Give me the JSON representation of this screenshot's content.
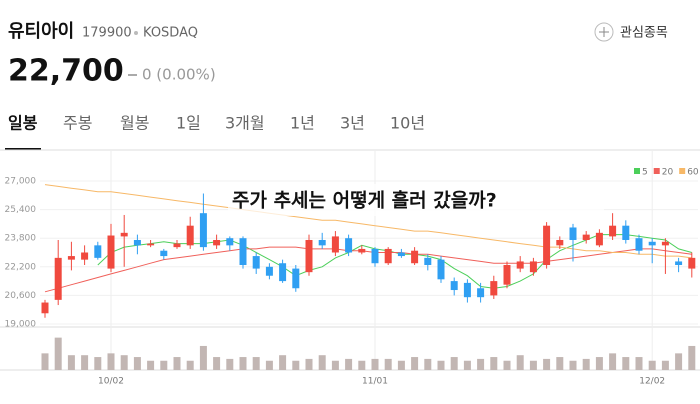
{
  "header": {
    "title": "유티아이",
    "code": "179900",
    "market": "KOSDAQ",
    "price": "22,700",
    "change": "0 (0.00%)",
    "watch_button": "관심종목"
  },
  "tabs": {
    "items": [
      "일봉",
      "주봉",
      "월봉",
      "1일",
      "3개월",
      "1년",
      "3년",
      "10년"
    ],
    "selected": 0
  },
  "chart_data": {
    "type": "candlestick",
    "annotation": "주가 추세는 어떻게 흘러 갔을까?",
    "categories": [
      null,
      null,
      null,
      null,
      null,
      "10/02",
      null,
      null,
      null,
      null,
      null,
      null,
      null,
      null,
      null,
      null,
      null,
      null,
      null,
      null,
      null,
      null,
      null,
      null,
      null,
      "11/01",
      null,
      null,
      null,
      null,
      null,
      null,
      null,
      null,
      null,
      null,
      null,
      null,
      null,
      null,
      null,
      null,
      null,
      null,
      null,
      null,
      "12/02",
      null,
      null,
      null
    ],
    "open": [
      19600,
      20350,
      22600,
      22600,
      23400,
      22100,
      23900,
      23700,
      23400,
      23100,
      23300,
      23400,
      25200,
      23400,
      23800,
      23800,
      22800,
      22200,
      22400,
      22100,
      21900,
      23700,
      23000,
      23800,
      23000,
      23200,
      22400,
      23000,
      22400,
      22700,
      22600,
      21400,
      21300,
      21000,
      20600,
      21200,
      22100,
      21900,
      22300,
      23400,
      24400,
      23700,
      23400,
      23900,
      24500,
      23800,
      23600,
      23400,
      22500,
      22100
    ],
    "high": [
      20350,
      23700,
      23600,
      23400,
      23600,
      24600,
      25100,
      24000,
      23700,
      23200,
      23700,
      25000,
      26300,
      24000,
      23900,
      23900,
      23000,
      22400,
      22600,
      22300,
      24000,
      24100,
      24200,
      24000,
      23400,
      23300,
      23300,
      23200,
      23300,
      22900,
      22800,
      21600,
      21500,
      21300,
      21700,
      22500,
      22800,
      22700,
      24700,
      23900,
      24600,
      24200,
      24300,
      25200,
      24800,
      24000,
      23800,
      23800,
      22700,
      23000
    ],
    "low": [
      19350,
      20060,
      22000,
      22300,
      22600,
      21900,
      22200,
      22900,
      23300,
      22600,
      23200,
      23200,
      23100,
      23200,
      23100,
      22100,
      21800,
      21500,
      21300,
      20800,
      21700,
      23200,
      22800,
      22800,
      22900,
      22200,
      22300,
      22700,
      22300,
      22000,
      21300,
      20600,
      20200,
      20200,
      20400,
      21000,
      21900,
      21700,
      22100,
      23200,
      22500,
      23500,
      23300,
      23700,
      23500,
      22900,
      22400,
      21800,
      21900,
      21600
    ],
    "close": [
      20200,
      22700,
      22800,
      23000,
      22700,
      23950,
      24100,
      23400,
      23500,
      22800,
      23500,
      24500,
      23300,
      23700,
      23400,
      22300,
      22100,
      21700,
      21400,
      21000,
      23700,
      23400,
      23900,
      23000,
      23200,
      22400,
      23200,
      22800,
      23100,
      22300,
      21500,
      20900,
      20500,
      20500,
      21400,
      22300,
      22500,
      22500,
      24500,
      23700,
      23700,
      24000,
      24100,
      24500,
      23700,
      23100,
      23400,
      23600,
      22300,
      22700
    ],
    "up_color": "#f0493e",
    "down_color": "#2f9ff2",
    "series": [
      {
        "name": "5",
        "color": "#4ccf5a",
        "values": [
          null,
          null,
          null,
          null,
          22300,
          23000,
          23300,
          23400,
          23500,
          23600,
          23500,
          23500,
          23500,
          23600,
          23700,
          23400,
          23000,
          22600,
          22200,
          21700,
          22000,
          22200,
          22700,
          23000,
          23400,
          23200,
          23100,
          22900,
          22900,
          22800,
          22600,
          22100,
          21700,
          21100,
          21000,
          21100,
          21400,
          21800,
          22600,
          23100,
          23400,
          23700,
          24000,
          24000,
          24000,
          23900,
          23800,
          23700,
          23200,
          23000
        ]
      },
      {
        "name": "20",
        "color": "#f0605a",
        "values": [
          20800,
          21000,
          21200,
          21400,
          21600,
          21800,
          22000,
          22200,
          22400,
          22600,
          22700,
          22800,
          22900,
          23000,
          23100,
          23200,
          23200,
          23300,
          23300,
          23300,
          23200,
          23200,
          23200,
          23100,
          23100,
          23000,
          23000,
          23000,
          22900,
          22900,
          22800,
          22700,
          22600,
          22500,
          22400,
          22400,
          22400,
          22400,
          22500,
          22600,
          22700,
          22800,
          22900,
          23000,
          23100,
          23200,
          23200,
          23100,
          23000,
          22900
        ]
      },
      {
        "name": "60",
        "color": "#f7b867",
        "values": [
          26800,
          26700,
          26600,
          26500,
          26400,
          26400,
          26300,
          26200,
          26100,
          26000,
          25900,
          25800,
          25700,
          25600,
          25500,
          25400,
          25300,
          25200,
          25100,
          25000,
          24900,
          24800,
          24800,
          24700,
          24600,
          24500,
          24400,
          24300,
          24200,
          24200,
          24100,
          24000,
          23900,
          23800,
          23700,
          23600,
          23500,
          23400,
          23300,
          23300,
          23200,
          23100,
          23100,
          23000,
          23000,
          22900,
          22900,
          22800,
          22800,
          22700
        ]
      }
    ],
    "volume": [
      18,
      35,
      16,
      16,
      14,
      18,
      16,
      14,
      10,
      10,
      14,
      10,
      26,
      14,
      12,
      14,
      14,
      10,
      16,
      10,
      12,
      16,
      10,
      12,
      10,
      12,
      12,
      10,
      14,
      12,
      10,
      14,
      10,
      12,
      14,
      10,
      16,
      10,
      12,
      14,
      10,
      12,
      14,
      18,
      14,
      14,
      10,
      10,
      18,
      26
    ],
    "volume_color": "#c2b6b3",
    "volume_lim": [
      0,
      40
    ],
    "ylim": [
      19000,
      27000
    ],
    "yticks": [
      {
        "value": 19000,
        "label": "19,000"
      },
      {
        "value": 20600,
        "label": "20,600"
      },
      {
        "value": 22200,
        "label": "22,200"
      },
      {
        "value": 23800,
        "label": "23,800"
      },
      {
        "value": 25400,
        "label": "25,400"
      },
      {
        "value": 27000,
        "label": "27,000"
      }
    ],
    "grid": true,
    "legend": "top-right"
  }
}
